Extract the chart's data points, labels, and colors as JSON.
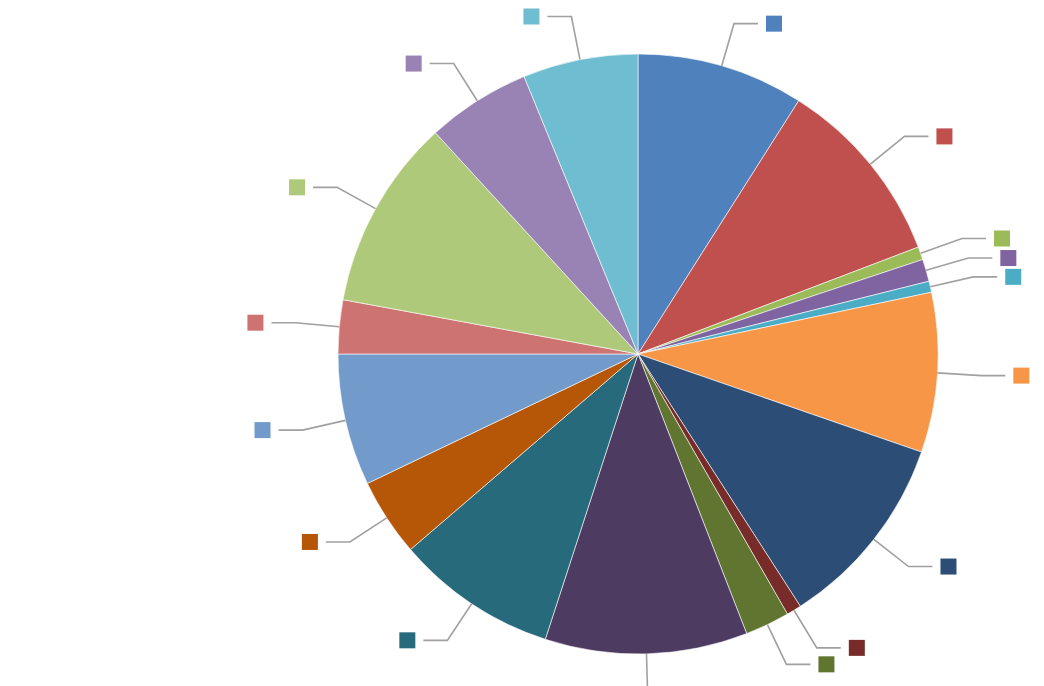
{
  "chart_data": {
    "type": "pie",
    "categories": [
      null,
      null,
      null,
      null,
      null,
      null,
      null,
      null,
      null,
      null,
      null,
      null,
      null,
      null,
      null,
      null,
      null
    ],
    "values": [
      9.0,
      10.2,
      0.7,
      1.2,
      0.6,
      8.6,
      10.6,
      0.8,
      2.4,
      10.9,
      8.7,
      4.2,
      7.1,
      2.9,
      10.3,
      5.6,
      6.2
    ],
    "colors": [
      "#4f81bd",
      "#c0504d",
      "#9bbb59",
      "#8064a2",
      "#4bacc6",
      "#f79646",
      "#2c4d75",
      "#772c2a",
      "#5f7530",
      "#4d3b62",
      "#276a7c",
      "#b65708",
      "#729aca",
      "#cd7371",
      "#afc97a",
      "#9983b5",
      "#6fbdd1"
    ]
  }
}
